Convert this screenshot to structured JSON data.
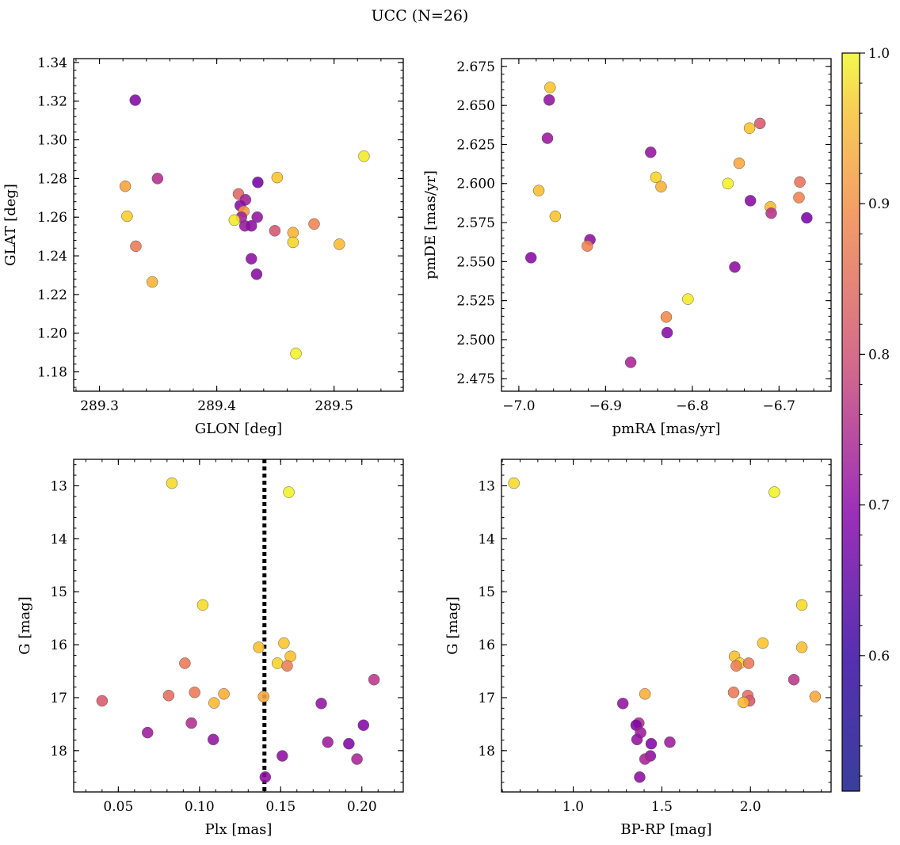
{
  "figure": {
    "title": "UCC (N=26)"
  },
  "colorbar": {
    "ticks": [
      {
        "value": 0.6,
        "label": "0.6"
      },
      {
        "value": 0.7,
        "label": "0.7"
      },
      {
        "value": 0.8,
        "label": "0.8"
      },
      {
        "value": 0.9,
        "label": "0.9"
      },
      {
        "value": 1.0,
        "label": "1.0"
      }
    ],
    "range": [
      0.51,
      1.0
    ],
    "colormap": "plasma"
  },
  "chart_data": [
    {
      "type": "scatter",
      "xlabel": "GLON [deg]",
      "ylabel": "GLAT [deg]",
      "xlim": [
        289.278,
        289.559
      ],
      "ylim": [
        1.17,
        1.342
      ],
      "invert_y": false,
      "xticks": [
        {
          "v": 289.3,
          "l": "289.3"
        },
        {
          "v": 289.4,
          "l": "289.4"
        },
        {
          "v": 289.5,
          "l": "289.5"
        }
      ],
      "yticks": [
        {
          "v": 1.18,
          "l": "1.18"
        },
        {
          "v": 1.2,
          "l": "1.20"
        },
        {
          "v": 1.22,
          "l": "1.22"
        },
        {
          "v": 1.24,
          "l": "1.24"
        },
        {
          "v": 1.26,
          "l": "1.26"
        },
        {
          "v": 1.28,
          "l": "1.28"
        },
        {
          "v": 1.3,
          "l": "1.30"
        },
        {
          "v": 1.32,
          "l": "1.32"
        },
        {
          "v": 1.34,
          "l": "1.34"
        }
      ],
      "points": [
        {
          "x": 289.3305,
          "y": 1.3205,
          "c": 0.56
        },
        {
          "x": 289.3495,
          "y": 1.28,
          "c": 0.65
        },
        {
          "x": 289.322,
          "y": 1.276,
          "c": 0.87
        },
        {
          "x": 289.3235,
          "y": 1.2605,
          "c": 0.94
        },
        {
          "x": 289.331,
          "y": 1.245,
          "c": 0.8
        },
        {
          "x": 289.345,
          "y": 1.2265,
          "c": 0.9
        },
        {
          "x": 289.4185,
          "y": 1.272,
          "c": 0.77
        },
        {
          "x": 289.435,
          "y": 1.278,
          "c": 0.54
        },
        {
          "x": 289.4245,
          "y": 1.269,
          "c": 0.62
        },
        {
          "x": 289.42,
          "y": 1.266,
          "c": 0.57
        },
        {
          "x": 289.423,
          "y": 1.263,
          "c": 0.85
        },
        {
          "x": 289.421,
          "y": 1.26,
          "c": 0.62
        },
        {
          "x": 289.424,
          "y": 1.2555,
          "c": 0.6
        },
        {
          "x": 289.4295,
          "y": 1.2555,
          "c": 0.58
        },
        {
          "x": 289.4345,
          "y": 1.26,
          "c": 0.59
        },
        {
          "x": 289.415,
          "y": 1.2585,
          "c": 0.98
        },
        {
          "x": 289.4295,
          "y": 1.2385,
          "c": 0.58
        },
        {
          "x": 289.434,
          "y": 1.2305,
          "c": 0.57
        },
        {
          "x": 289.4515,
          "y": 1.2805,
          "c": 0.93
        },
        {
          "x": 289.4495,
          "y": 1.253,
          "c": 0.73
        },
        {
          "x": 289.465,
          "y": 1.252,
          "c": 0.9
        },
        {
          "x": 289.465,
          "y": 1.247,
          "c": 0.95
        },
        {
          "x": 289.483,
          "y": 1.2565,
          "c": 0.82
        },
        {
          "x": 289.5045,
          "y": 1.246,
          "c": 0.91
        },
        {
          "x": 289.5255,
          "y": 1.2915,
          "c": 0.98
        },
        {
          "x": 289.4675,
          "y": 1.1895,
          "c": 0.99
        }
      ]
    },
    {
      "type": "scatter",
      "xlabel": "pmRA [mas/yr]",
      "ylabel": "pmDE [mas/yr]",
      "xlim": [
        -7.02,
        -6.64
      ],
      "ylim": [
        2.467,
        2.68
      ],
      "invert_y": false,
      "xticks": [
        {
          "v": -7.0,
          "l": "−7.0"
        },
        {
          "v": -6.9,
          "l": "−6.9"
        },
        {
          "v": -6.8,
          "l": "−6.8"
        },
        {
          "v": -6.7,
          "l": "−6.7"
        }
      ],
      "yticks": [
        {
          "v": 2.475,
          "l": "2.475"
        },
        {
          "v": 2.5,
          "l": "2.500"
        },
        {
          "v": 2.525,
          "l": "2.525"
        },
        {
          "v": 2.55,
          "l": "2.550"
        },
        {
          "v": 2.575,
          "l": "2.575"
        },
        {
          "v": 2.6,
          "l": "2.600"
        },
        {
          "v": 2.625,
          "l": "2.625"
        },
        {
          "v": 2.65,
          "l": "2.650"
        },
        {
          "v": 2.675,
          "l": "2.675"
        }
      ],
      "points": [
        {
          "x": -6.964,
          "y": 2.6615,
          "c": 0.93
        },
        {
          "x": -6.965,
          "y": 2.6535,
          "c": 0.59
        },
        {
          "x": -6.967,
          "y": 2.629,
          "c": 0.6
        },
        {
          "x": -6.977,
          "y": 2.5955,
          "c": 0.92
        },
        {
          "x": -6.958,
          "y": 2.579,
          "c": 0.93
        },
        {
          "x": -6.986,
          "y": 2.5525,
          "c": 0.57
        },
        {
          "x": -6.918,
          "y": 2.564,
          "c": 0.58
        },
        {
          "x": -6.921,
          "y": 2.56,
          "c": 0.82
        },
        {
          "x": -6.848,
          "y": 2.62,
          "c": 0.59
        },
        {
          "x": -6.842,
          "y": 2.604,
          "c": 0.95
        },
        {
          "x": -6.836,
          "y": 2.598,
          "c": 0.9
        },
        {
          "x": -6.805,
          "y": 2.526,
          "c": 0.98
        },
        {
          "x": -6.83,
          "y": 2.5145,
          "c": 0.83
        },
        {
          "x": -6.829,
          "y": 2.5045,
          "c": 0.57
        },
        {
          "x": -6.871,
          "y": 2.4855,
          "c": 0.63
        },
        {
          "x": -6.759,
          "y": 2.6,
          "c": 0.99
        },
        {
          "x": -6.746,
          "y": 2.613,
          "c": 0.88
        },
        {
          "x": -6.734,
          "y": 2.6355,
          "c": 0.93
        },
        {
          "x": -6.722,
          "y": 2.6385,
          "c": 0.74
        },
        {
          "x": -6.733,
          "y": 2.589,
          "c": 0.57
        },
        {
          "x": -6.751,
          "y": 2.5465,
          "c": 0.58
        },
        {
          "x": -6.71,
          "y": 2.585,
          "c": 0.91
        },
        {
          "x": -6.709,
          "y": 2.581,
          "c": 0.66
        },
        {
          "x": -6.676,
          "y": 2.601,
          "c": 0.79
        },
        {
          "x": -6.677,
          "y": 2.591,
          "c": 0.82
        },
        {
          "x": -6.668,
          "y": 2.578,
          "c": 0.55
        }
      ]
    },
    {
      "type": "scatter",
      "xlabel": "Plx [mas]",
      "ylabel": "G [mag]",
      "xlim": [
        0.0225,
        0.2255
      ],
      "ylim": [
        12.5,
        18.78
      ],
      "invert_y": true,
      "reference_line": {
        "x": 0.14,
        "style": "dotted"
      },
      "xticks": [
        {
          "v": 0.05,
          "l": "0.05"
        },
        {
          "v": 0.1,
          "l": "0.10"
        },
        {
          "v": 0.15,
          "l": "0.15"
        },
        {
          "v": 0.2,
          "l": "0.20"
        }
      ],
      "yticks": [
        {
          "v": 13,
          "l": "13"
        },
        {
          "v": 14,
          "l": "14"
        },
        {
          "v": 15,
          "l": "15"
        },
        {
          "v": 16,
          "l": "16"
        },
        {
          "v": 17,
          "l": "17"
        },
        {
          "v": 18,
          "l": "18"
        }
      ],
      "points": [
        {
          "x": 0.083,
          "y": 12.95,
          "c": 0.96
        },
        {
          "x": 0.155,
          "y": 13.12,
          "c": 0.99
        },
        {
          "x": 0.102,
          "y": 15.25,
          "c": 0.96
        },
        {
          "x": 0.152,
          "y": 15.97,
          "c": 0.93
        },
        {
          "x": 0.1365,
          "y": 16.05,
          "c": 0.92
        },
        {
          "x": 0.156,
          "y": 16.22,
          "c": 0.92
        },
        {
          "x": 0.148,
          "y": 16.35,
          "c": 0.95
        },
        {
          "x": 0.154,
          "y": 16.4,
          "c": 0.81
        },
        {
          "x": 0.091,
          "y": 16.35,
          "c": 0.8
        },
        {
          "x": 0.097,
          "y": 16.9,
          "c": 0.8
        },
        {
          "x": 0.081,
          "y": 16.96,
          "c": 0.78
        },
        {
          "x": 0.115,
          "y": 16.93,
          "c": 0.89
        },
        {
          "x": 0.109,
          "y": 17.1,
          "c": 0.91
        },
        {
          "x": 0.1395,
          "y": 16.98,
          "c": 0.88
        },
        {
          "x": 0.04,
          "y": 17.06,
          "c": 0.74
        },
        {
          "x": 0.068,
          "y": 17.66,
          "c": 0.61
        },
        {
          "x": 0.095,
          "y": 17.48,
          "c": 0.65
        },
        {
          "x": 0.1085,
          "y": 17.79,
          "c": 0.59
        },
        {
          "x": 0.175,
          "y": 17.11,
          "c": 0.59
        },
        {
          "x": 0.2075,
          "y": 16.66,
          "c": 0.67
        },
        {
          "x": 0.201,
          "y": 17.52,
          "c": 0.56
        },
        {
          "x": 0.179,
          "y": 17.84,
          "c": 0.61
        },
        {
          "x": 0.192,
          "y": 17.87,
          "c": 0.56
        },
        {
          "x": 0.151,
          "y": 18.1,
          "c": 0.58
        },
        {
          "x": 0.197,
          "y": 18.16,
          "c": 0.63
        },
        {
          "x": 0.1405,
          "y": 18.5,
          "c": 0.58
        }
      ]
    },
    {
      "type": "scatter",
      "xlabel": "BP-RP [mag]",
      "ylabel": "G [mag]",
      "xlim": [
        0.595,
        2.455
      ],
      "ylim": [
        12.5,
        18.78
      ],
      "invert_y": true,
      "xticks": [
        {
          "v": 1.0,
          "l": "1.0"
        },
        {
          "v": 1.5,
          "l": "1.5"
        },
        {
          "v": 2.0,
          "l": "2.0"
        }
      ],
      "yticks": [
        {
          "v": 13,
          "l": "13"
        },
        {
          "v": 14,
          "l": "14"
        },
        {
          "v": 15,
          "l": "15"
        },
        {
          "v": 16,
          "l": "16"
        },
        {
          "v": 17,
          "l": "17"
        },
        {
          "v": 18,
          "l": "18"
        }
      ],
      "points": [
        {
          "x": 0.665,
          "y": 12.95,
          "c": 0.96
        },
        {
          "x": 2.135,
          "y": 13.12,
          "c": 0.99
        },
        {
          "x": 2.29,
          "y": 15.25,
          "c": 0.96
        },
        {
          "x": 2.07,
          "y": 15.97,
          "c": 0.93
        },
        {
          "x": 2.29,
          "y": 16.05,
          "c": 0.92
        },
        {
          "x": 1.91,
          "y": 16.22,
          "c": 0.92
        },
        {
          "x": 1.94,
          "y": 16.35,
          "c": 0.95
        },
        {
          "x": 1.99,
          "y": 16.35,
          "c": 0.8
        },
        {
          "x": 1.92,
          "y": 16.4,
          "c": 0.81
        },
        {
          "x": 1.905,
          "y": 16.9,
          "c": 0.8
        },
        {
          "x": 1.985,
          "y": 16.96,
          "c": 0.78
        },
        {
          "x": 1.995,
          "y": 17.06,
          "c": 0.74
        },
        {
          "x": 1.96,
          "y": 17.09,
          "c": 0.91
        },
        {
          "x": 2.365,
          "y": 16.98,
          "c": 0.88
        },
        {
          "x": 2.245,
          "y": 16.66,
          "c": 0.67
        },
        {
          "x": 1.405,
          "y": 16.93,
          "c": 0.89
        },
        {
          "x": 1.28,
          "y": 17.11,
          "c": 0.59
        },
        {
          "x": 1.37,
          "y": 17.48,
          "c": 0.65
        },
        {
          "x": 1.355,
          "y": 17.52,
          "c": 0.56
        },
        {
          "x": 1.38,
          "y": 17.66,
          "c": 0.61
        },
        {
          "x": 1.36,
          "y": 17.79,
          "c": 0.59
        },
        {
          "x": 1.44,
          "y": 17.87,
          "c": 0.56
        },
        {
          "x": 1.545,
          "y": 17.84,
          "c": 0.61
        },
        {
          "x": 1.435,
          "y": 18.1,
          "c": 0.58
        },
        {
          "x": 1.405,
          "y": 18.16,
          "c": 0.63
        },
        {
          "x": 1.375,
          "y": 18.5,
          "c": 0.58
        }
      ]
    }
  ]
}
